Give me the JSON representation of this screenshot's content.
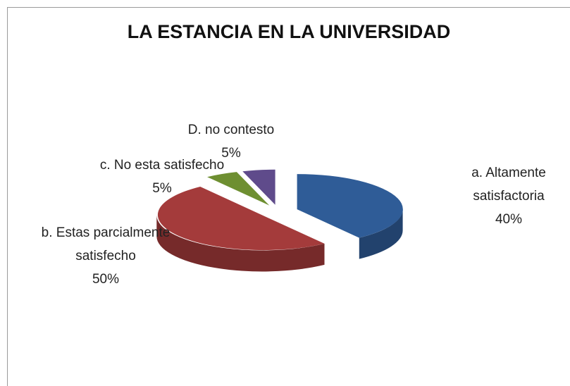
{
  "chart_data": {
    "type": "pie3d",
    "title": "LA ESTANCIA EN LA UNIVERSIDAD",
    "categories": [
      "a. Altamente satisfactoria",
      "b. Estas parcialmente satisfecho",
      "c. No esta satisfecho",
      "D. no contesto"
    ],
    "values": [
      40,
      50,
      5,
      5
    ],
    "value_labels": [
      "40%",
      "50%",
      "5%",
      "5%"
    ],
    "colors": [
      "#2f5c97",
      "#a43b3b",
      "#6e8f31",
      "#5f4b8b"
    ]
  }
}
